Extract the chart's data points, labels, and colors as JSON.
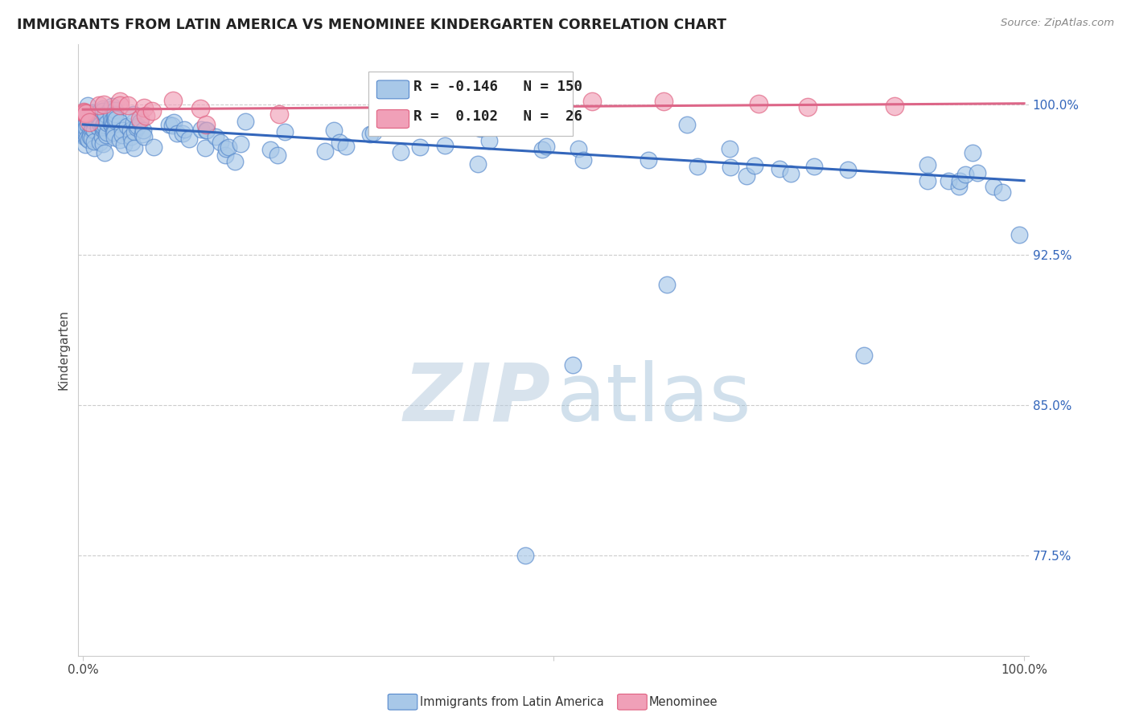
{
  "title": "IMMIGRANTS FROM LATIN AMERICA VS MENOMINEE KINDERGARTEN CORRELATION CHART",
  "source": "Source: ZipAtlas.com",
  "ylabel": "Kindergarten",
  "ytick_labels": [
    "77.5%",
    "85.0%",
    "92.5%",
    "100.0%"
  ],
  "ytick_values": [
    0.775,
    0.85,
    0.925,
    1.0
  ],
  "xlim": [
    0.0,
    1.0
  ],
  "ylim": [
    0.725,
    1.03
  ],
  "legend_blue_r": "-0.146",
  "legend_blue_n": "150",
  "legend_pink_r": "0.102",
  "legend_pink_n": "26",
  "blue_fill_color": "#A8C8E8",
  "blue_edge_color": "#5588CC",
  "pink_fill_color": "#F0A0B8",
  "pink_edge_color": "#E06080",
  "blue_line_color": "#3366BB",
  "pink_line_color": "#DD6688",
  "grid_color": "#CCCCCC",
  "blue_line_y_start": 0.99,
  "blue_line_y_end": 0.962,
  "pink_line_y_start": 0.9975,
  "pink_line_y_end": 1.0005
}
